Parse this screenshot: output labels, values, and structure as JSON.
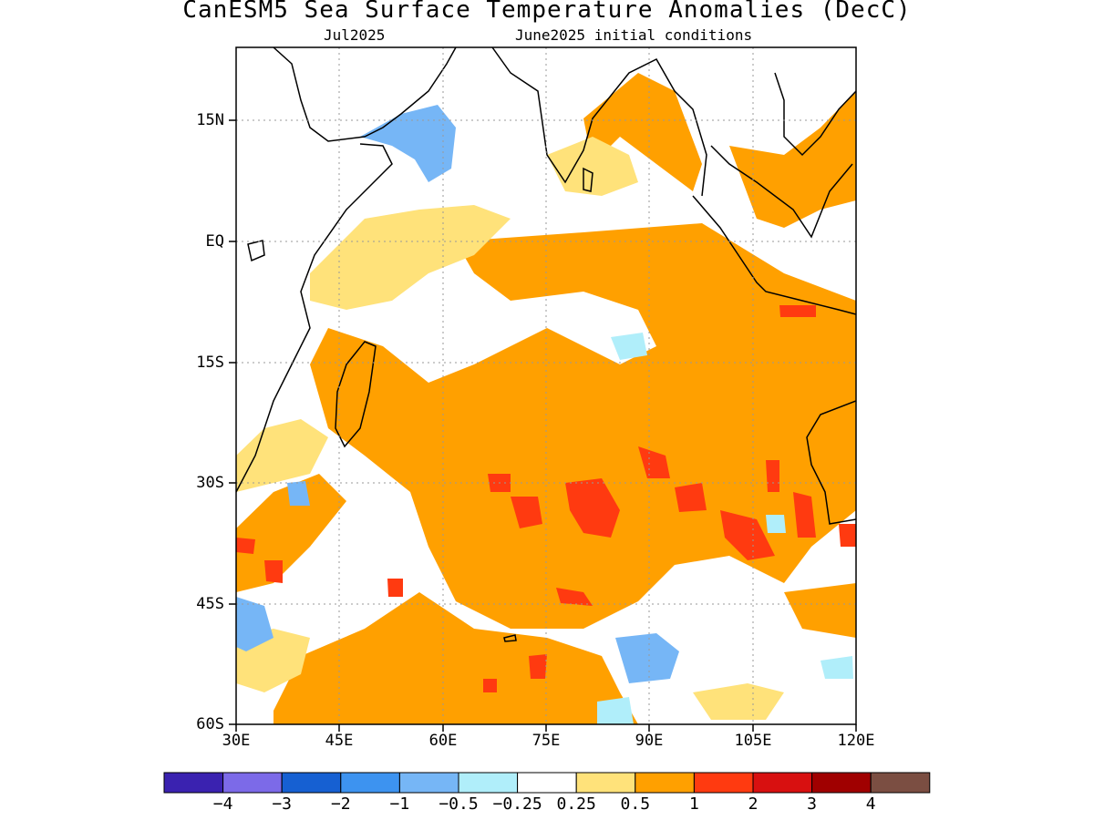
{
  "title": "CanESM5 Sea Surface Temperature Anomalies (DecC)",
  "subtitle_left": "Jul2025",
  "subtitle_right": "June2025 initial conditions",
  "lat_labels": [
    "15N",
    "EQ",
    "15S",
    "30S",
    "45S",
    "60S"
  ],
  "lon_labels": [
    "30E",
    "45E",
    "60E",
    "75E",
    "90E",
    "105E",
    "120E"
  ],
  "colorbar": {
    "colors": [
      "#3a22b0",
      "#7c6ae8",
      "#1660d2",
      "#3d93f0",
      "#76b6f6",
      "#b0eefa",
      "#ffffff",
      "#ffe27a",
      "#ffa000",
      "#ff3a10",
      "#d81010",
      "#a00000",
      "#7b4e42"
    ],
    "labels": [
      "−4",
      "−3",
      "−2",
      "−1",
      "−0.5",
      "−0.25",
      "0.25",
      "0.5",
      "1",
      "2",
      "3",
      "4"
    ]
  }
}
